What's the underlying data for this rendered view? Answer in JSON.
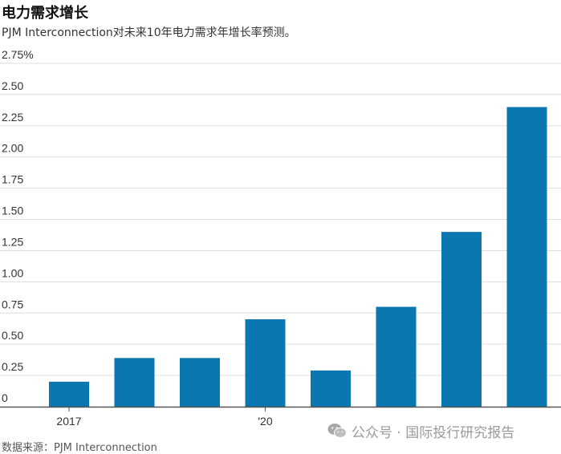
{
  "title": "电力需求增长",
  "subtitle": "PJM Interconnection对未来10年电力需求年增长率预测。",
  "source": "数据来源：PJM Interconnection",
  "watermark": {
    "text": "公众号 · 国际投行研究报告",
    "icon": "wechat-icon"
  },
  "colors": {
    "bar": "#0a77b0",
    "grid": "#dddddd",
    "axis": "#555555"
  },
  "chart_data": {
    "type": "bar",
    "categories": [
      "2017",
      "",
      "",
      "'20",
      "",
      "",
      "",
      ""
    ],
    "x_tick_labels": [
      {
        "index": 0,
        "label": "2017"
      },
      {
        "index": 3,
        "label": "'20"
      }
    ],
    "values": [
      0.2,
      0.39,
      0.39,
      0.7,
      0.29,
      0.8,
      1.4,
      2.4
    ],
    "ylim": [
      0,
      2.75
    ],
    "y_ticks": [
      0,
      0.25,
      0.5,
      0.75,
      1.0,
      1.25,
      1.5,
      1.75,
      2.0,
      2.25,
      2.5,
      2.75
    ],
    "y_tick_labels": [
      "0",
      "0.25",
      "0.50",
      "0.75",
      "1.00",
      "1.25",
      "1.50",
      "1.75",
      "2.00",
      "2.25",
      "2.50",
      "2.75%"
    ],
    "title": "电力需求增长",
    "subtitle": "PJM Interconnection对未来10年电力需求年增长率预测。",
    "xlabel": "",
    "ylabel": "",
    "grid": true
  }
}
